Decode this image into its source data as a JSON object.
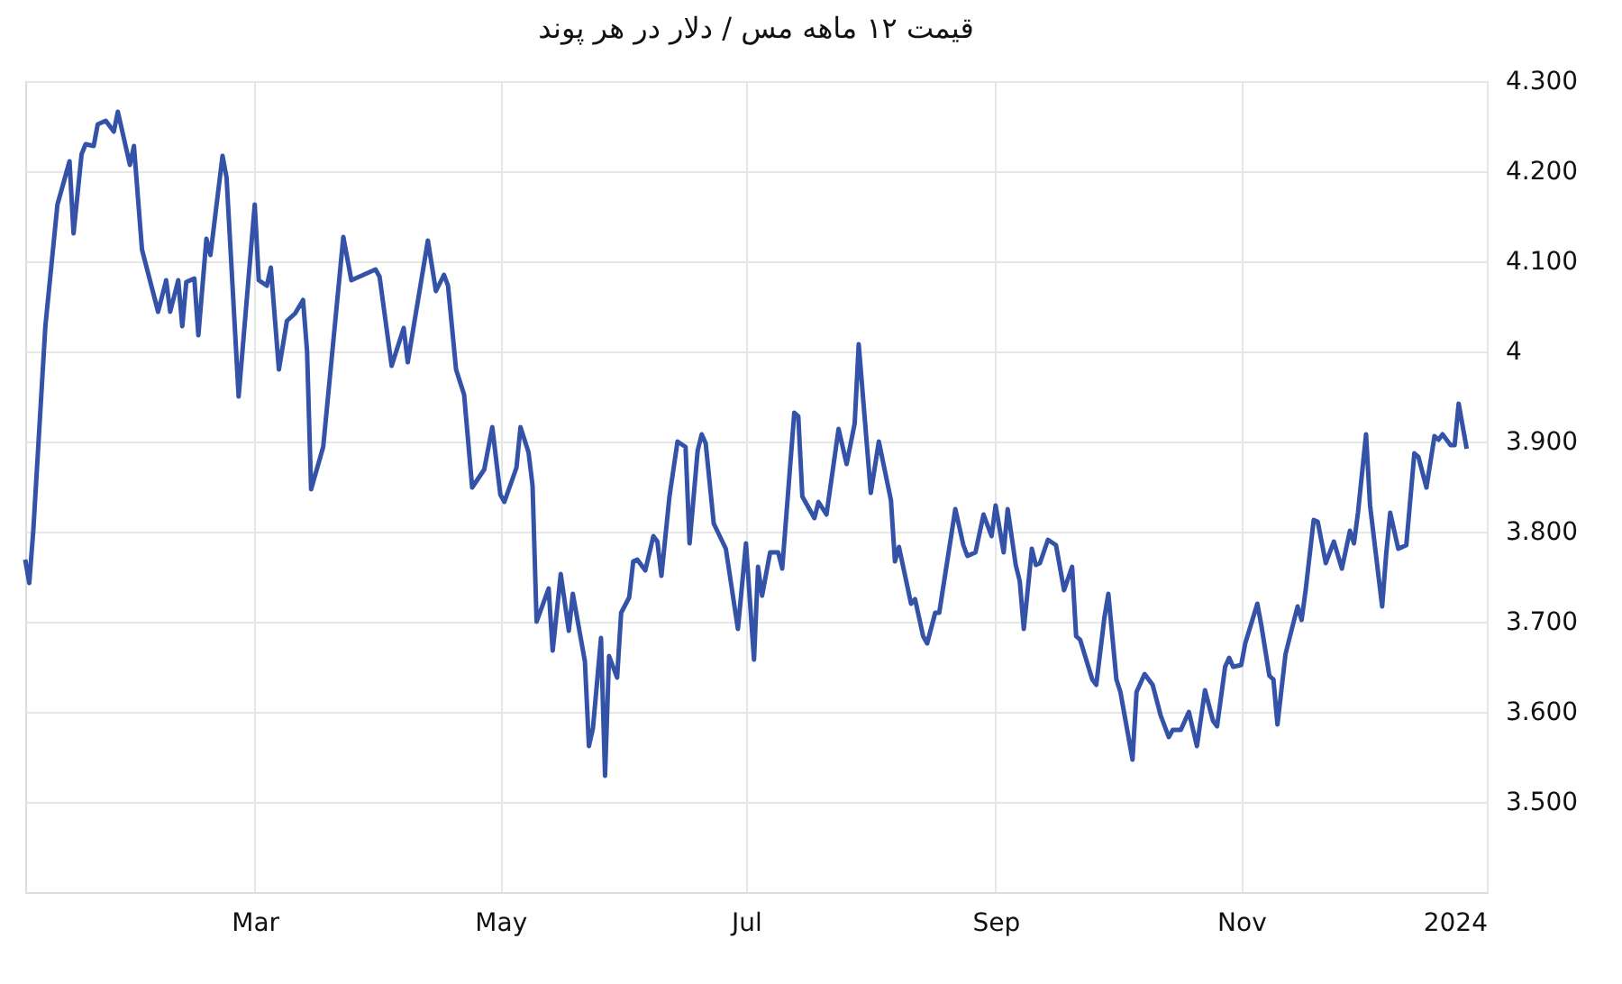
{
  "chart_data": {
    "type": "line",
    "title": "قیمت ۱۲ ماهه مس / دلار در هر پوند",
    "x": [
      "2023-01-03",
      "2023-01-04",
      "2023-01-05",
      "2023-01-08",
      "2023-01-11",
      "2023-01-14",
      "2023-01-15",
      "2023-01-17",
      "2023-01-18",
      "2023-01-20",
      "2023-01-21",
      "2023-01-23",
      "2023-01-25",
      "2023-01-26",
      "2023-01-29",
      "2023-01-30",
      "2023-02-01",
      "2023-02-05",
      "2023-02-07",
      "2023-02-08",
      "2023-02-10",
      "2023-02-11",
      "2023-02-12",
      "2023-02-14",
      "2023-02-15",
      "2023-02-17",
      "2023-02-18",
      "2023-02-21",
      "2023-02-22",
      "2023-02-25",
      "2023-03-01",
      "2023-03-02",
      "2023-03-04",
      "2023-03-05",
      "2023-03-07",
      "2023-03-09",
      "2023-03-11",
      "2023-03-13",
      "2023-03-14",
      "2023-03-15",
      "2023-03-18",
      "2023-03-23",
      "2023-03-25",
      "2023-03-31",
      "2023-04-01",
      "2023-04-04",
      "2023-04-07",
      "2023-04-08",
      "2023-04-13",
      "2023-04-15",
      "2023-04-17",
      "2023-04-18",
      "2023-04-20",
      "2023-04-22",
      "2023-04-24",
      "2023-04-27",
      "2023-04-29",
      "2023-05-01",
      "2023-05-02",
      "2023-05-05",
      "2023-05-06",
      "2023-05-08",
      "2023-05-09",
      "2023-05-10",
      "2023-05-13",
      "2023-05-14",
      "2023-05-16",
      "2023-05-18",
      "2023-05-19",
      "2023-05-22",
      "2023-05-23",
      "2023-05-24",
      "2023-05-26",
      "2023-05-27",
      "2023-05-28",
      "2023-05-30",
      "2023-05-31",
      "2023-06-02",
      "2023-06-03",
      "2023-06-04",
      "2023-06-06",
      "2023-06-08",
      "2023-06-09",
      "2023-06-10",
      "2023-06-12",
      "2023-06-14",
      "2023-06-16",
      "2023-06-17",
      "2023-06-19",
      "2023-06-20",
      "2023-06-21",
      "2023-06-23",
      "2023-06-26",
      "2023-06-29",
      "2023-07-01",
      "2023-07-03",
      "2023-07-04",
      "2023-07-05",
      "2023-07-07",
      "2023-07-09",
      "2023-07-10",
      "2023-07-13",
      "2023-07-14",
      "2023-07-15",
      "2023-07-18",
      "2023-07-19",
      "2023-07-21",
      "2023-07-24",
      "2023-07-26",
      "2023-07-28",
      "2023-07-29",
      "2023-08-01",
      "2023-08-03",
      "2023-08-06",
      "2023-08-07",
      "2023-08-08",
      "2023-08-11",
      "2023-08-12",
      "2023-08-14",
      "2023-08-15",
      "2023-08-17",
      "2023-08-18",
      "2023-08-22",
      "2023-08-24",
      "2023-08-25",
      "2023-08-27",
      "2023-08-29",
      "2023-08-31",
      "2023-09-01",
      "2023-09-03",
      "2023-09-04",
      "2023-09-06",
      "2023-09-07",
      "2023-09-08",
      "2023-09-10",
      "2023-09-11",
      "2023-09-12",
      "2023-09-14",
      "2023-09-16",
      "2023-09-18",
      "2023-09-20",
      "2023-09-21",
      "2023-09-22",
      "2023-09-25",
      "2023-09-26",
      "2023-09-28",
      "2023-09-29",
      "2023-10-01",
      "2023-10-02",
      "2023-10-05",
      "2023-10-06",
      "2023-10-08",
      "2023-10-10",
      "2023-10-12",
      "2023-10-14",
      "2023-10-15",
      "2023-10-17",
      "2023-10-19",
      "2023-10-21",
      "2023-10-23",
      "2023-10-25",
      "2023-10-26",
      "2023-10-28",
      "2023-10-29",
      "2023-10-30",
      "2023-11-01",
      "2023-11-02",
      "2023-11-05",
      "2023-11-06",
      "2023-11-08",
      "2023-11-09",
      "2023-11-10",
      "2023-11-12",
      "2023-11-13",
      "2023-11-15",
      "2023-11-16",
      "2023-11-17",
      "2023-11-19",
      "2023-11-20",
      "2023-11-22",
      "2023-11-24",
      "2023-11-26",
      "2023-11-28",
      "2023-11-29",
      "2023-11-30",
      "2023-12-02",
      "2023-12-03",
      "2023-12-06",
      "2023-12-07",
      "2023-12-08",
      "2023-12-10",
      "2023-12-12",
      "2023-12-14",
      "2023-12-15",
      "2023-12-17",
      "2023-12-19",
      "2023-12-20",
      "2023-12-21",
      "2023-12-23",
      "2023-12-24",
      "2023-12-25",
      "2023-12-27"
    ],
    "series": [
      {
        "color": "#3352a8",
        "values": [
          3.769,
          3.743,
          3.801,
          4.028,
          4.163,
          4.211,
          4.131,
          4.219,
          4.23,
          4.228,
          4.252,
          4.256,
          4.244,
          4.266,
          4.207,
          4.228,
          4.113,
          4.044,
          4.079,
          4.044,
          4.079,
          4.028,
          4.077,
          4.081,
          4.018,
          4.125,
          4.107,
          4.217,
          4.193,
          3.95,
          4.163,
          4.079,
          4.073,
          4.093,
          3.98,
          4.034,
          4.042,
          4.057,
          4.0,
          3.847,
          3.894,
          4.127,
          4.079,
          4.091,
          4.083,
          3.984,
          4.026,
          3.988,
          4.123,
          4.067,
          4.085,
          4.073,
          3.98,
          3.952,
          3.849,
          3.869,
          3.916,
          3.841,
          3.833,
          3.871,
          3.916,
          3.888,
          3.851,
          3.7,
          3.737,
          3.668,
          3.753,
          3.69,
          3.731,
          3.656,
          3.562,
          3.582,
          3.682,
          3.529,
          3.662,
          3.638,
          3.71,
          3.727,
          3.767,
          3.769,
          3.757,
          3.795,
          3.789,
          3.751,
          3.839,
          3.9,
          3.894,
          3.787,
          3.89,
          3.908,
          3.898,
          3.809,
          3.781,
          3.692,
          3.787,
          3.658,
          3.761,
          3.729,
          3.777,
          3.777,
          3.759,
          3.932,
          3.928,
          3.839,
          3.815,
          3.833,
          3.819,
          3.914,
          3.875,
          3.92,
          4.008,
          3.843,
          3.9,
          3.835,
          3.767,
          3.783,
          3.72,
          3.725,
          3.684,
          3.676,
          3.71,
          3.71,
          3.825,
          3.785,
          3.773,
          3.777,
          3.819,
          3.795,
          3.829,
          3.777,
          3.825,
          3.763,
          3.745,
          3.692,
          3.781,
          3.763,
          3.765,
          3.791,
          3.785,
          3.735,
          3.761,
          3.684,
          3.68,
          3.636,
          3.63,
          3.704,
          3.731,
          3.636,
          3.622,
          3.547,
          3.622,
          3.642,
          3.63,
          3.596,
          3.572,
          3.58,
          3.58,
          3.6,
          3.562,
          3.624,
          3.59,
          3.584,
          3.65,
          3.66,
          3.65,
          3.652,
          3.676,
          3.72,
          3.696,
          3.64,
          3.636,
          3.586,
          3.664,
          3.682,
          3.717,
          3.702,
          3.735,
          3.813,
          3.811,
          3.765,
          3.789,
          3.759,
          3.801,
          3.787,
          3.821,
          3.908,
          3.829,
          3.717,
          3.775,
          3.821,
          3.781,
          3.785,
          3.887,
          3.883,
          3.849,
          3.906,
          3.902,
          3.908,
          3.896,
          3.896,
          3.942,
          3.892
        ]
      }
    ],
    "xlim": [
      "2023-01-03",
      "2024-01-01"
    ],
    "xticks": [
      {
        "value": "2023-03-01",
        "label": "Mar"
      },
      {
        "value": "2023-05-01",
        "label": "May"
      },
      {
        "value": "2023-07-01",
        "label": "Jul"
      },
      {
        "value": "2023-09-01",
        "label": "Sep"
      },
      {
        "value": "2023-11-01",
        "label": "Nov"
      },
      {
        "value": "2024-01-01",
        "label": "2024"
      }
    ],
    "ylim": [
      3.4,
      4.3
    ],
    "yticks": [
      {
        "value": 3.5,
        "label": "3.500"
      },
      {
        "value": 3.6,
        "label": "3.600"
      },
      {
        "value": 3.7,
        "label": "3.700"
      },
      {
        "value": 3.8,
        "label": "3.800"
      },
      {
        "value": 3.9,
        "label": "3.900"
      },
      {
        "value": 4,
        "label": "4"
      },
      {
        "value": 4.1,
        "label": "4.100"
      },
      {
        "value": 4.2,
        "label": "4.200"
      },
      {
        "value": 4.3,
        "label": "4.300"
      }
    ],
    "grid": true
  }
}
